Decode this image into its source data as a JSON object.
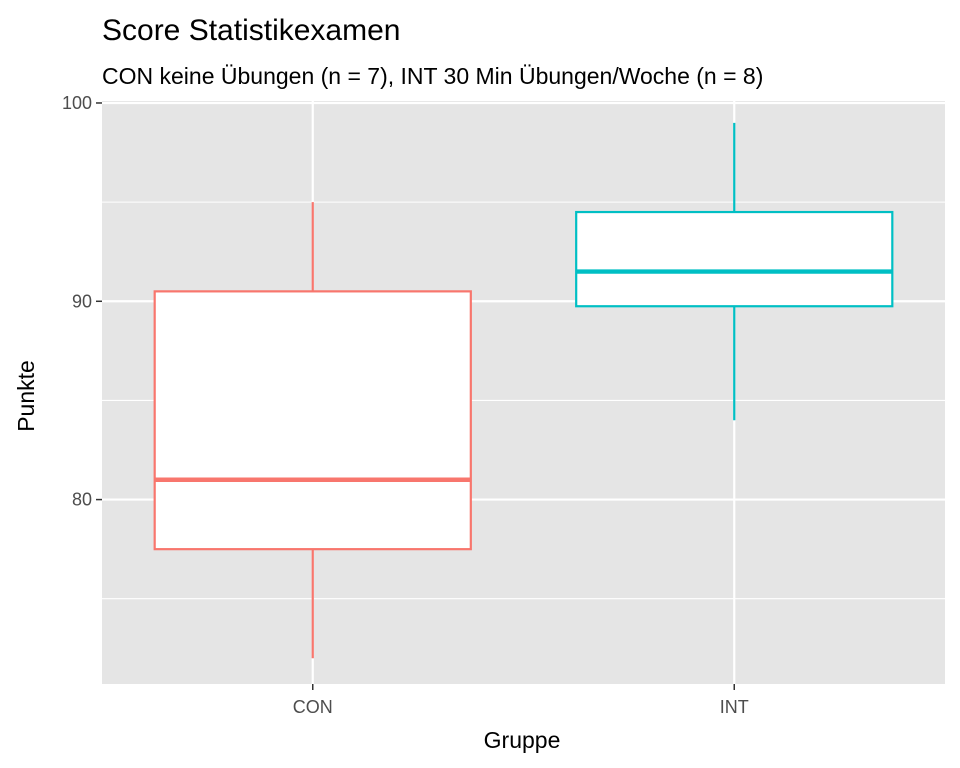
{
  "chart_data": {
    "type": "boxplot",
    "title": "Score Statistikexamen",
    "subtitle": "CON keine Übungen (n = 7), INT 30 Min Übungen/Woche (n = 8)",
    "xlabel": "Gruppe",
    "ylabel": "Punkte",
    "categories": [
      "CON",
      "INT"
    ],
    "ylim": [
      70.7,
      100.1
    ],
    "y_ticks": [
      80,
      90,
      100
    ],
    "grid": true,
    "legend": "none",
    "background": "#e5e5e5",
    "series": [
      {
        "category": "CON",
        "color": "#F8766D",
        "min": 72,
        "q1": 77.5,
        "median": 81,
        "q3": 90.5,
        "max": 95
      },
      {
        "category": "INT",
        "color": "#00BFC4",
        "min": 84,
        "q1": 89.75,
        "median": 91.5,
        "q3": 94.5,
        "max": 99
      }
    ]
  }
}
